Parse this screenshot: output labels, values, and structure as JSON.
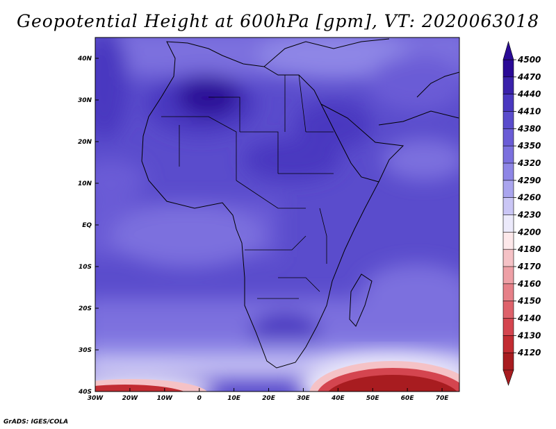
{
  "title": "Geopotential Height at 600hPa [gpm], VT: 2020063018",
  "credit": "GrADS: IGES/COLA",
  "map": {
    "lat_range": [
      -40,
      45
    ],
    "lon_range": [
      -30,
      75
    ],
    "lat_ticks": [
      "40N",
      "30N",
      "20N",
      "10N",
      "EQ",
      "10S",
      "20S",
      "30S",
      "40S"
    ],
    "lon_ticks": [
      "30W",
      "20W",
      "10W",
      "0",
      "10E",
      "20E",
      "30E",
      "40E",
      "50E",
      "60E",
      "70E"
    ]
  },
  "colorbar": {
    "levels": [
      "4500",
      "4470",
      "4440",
      "4410",
      "4380",
      "4350",
      "4320",
      "4290",
      "4260",
      "4230",
      "4200",
      "4180",
      "4170",
      "4160",
      "4150",
      "4140",
      "4130",
      "4120"
    ],
    "colors": [
      "#2a0a96",
      "#3a22aa",
      "#4a38c0",
      "#5a4ccc",
      "#6a5cd6",
      "#7b70de",
      "#8e86e6",
      "#aaa5ee",
      "#cac6f5",
      "#eceafb",
      "#fde8ea",
      "#f5c2c6",
      "#eea0a6",
      "#e68088",
      "#de626b",
      "#d4454f",
      "#c22c32",
      "#a81c20"
    ]
  }
}
